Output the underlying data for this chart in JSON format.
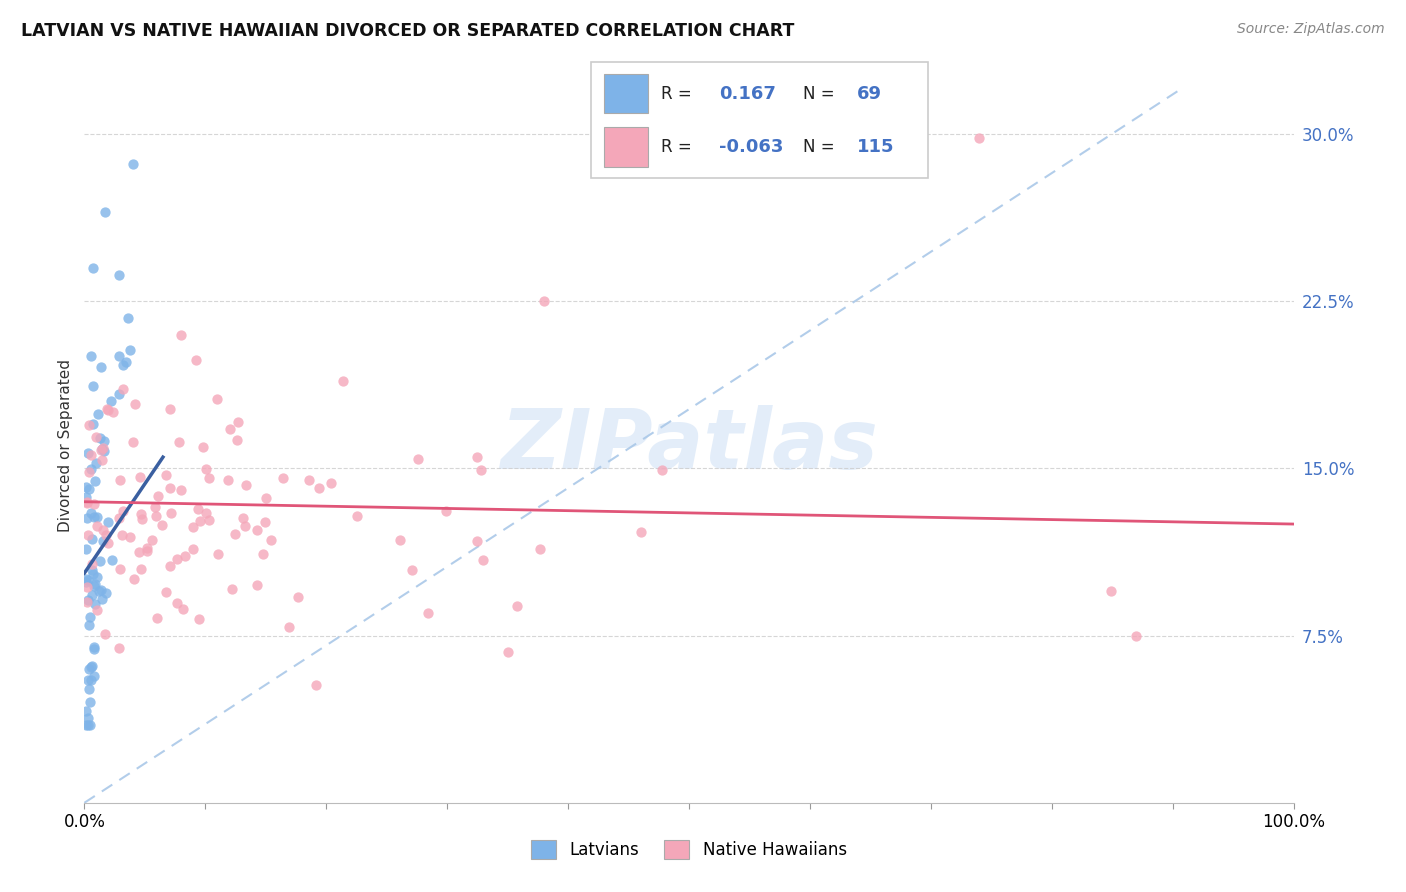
{
  "title": "LATVIAN VS NATIVE HAWAIIAN DIVORCED OR SEPARATED CORRELATION CHART",
  "source": "Source: ZipAtlas.com",
  "ylabel": "Divorced or Separated",
  "xlim": [
    0,
    1.0
  ],
  "ylim": [
    0,
    0.32
  ],
  "yticks": [
    0.075,
    0.15,
    0.225,
    0.3
  ],
  "yticklabels": [
    "7.5%",
    "15.0%",
    "22.5%",
    "30.0%"
  ],
  "latvian_color": "#7eb3e8",
  "native_hawaiian_color": "#f4a7b9",
  "latvian_line_color": "#3a5fa0",
  "native_hawaiian_line_color": "#e05578",
  "diagonal_color": "#aac8e8",
  "R_latvian": 0.167,
  "N_latvian": 69,
  "R_native": -0.063,
  "N_native": 115,
  "legend_label_latvian": "Latvians",
  "legend_label_native": "Native Hawaiians",
  "watermark": "ZIPatlas",
  "background_color": "#ffffff"
}
